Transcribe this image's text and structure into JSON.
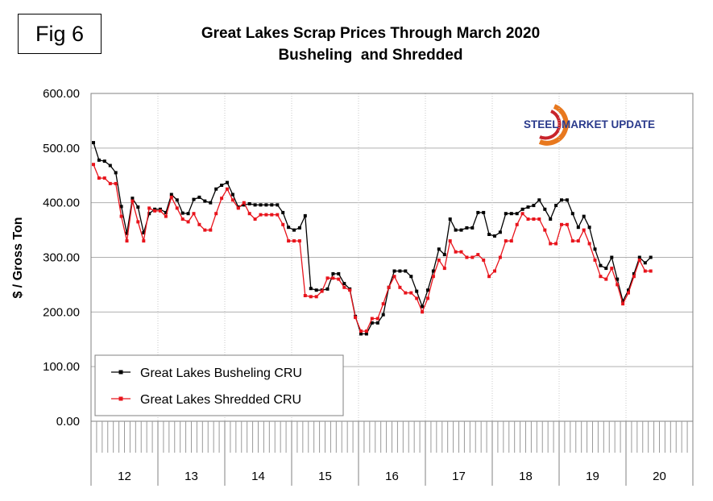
{
  "figure_label": "Fig 6",
  "logo": {
    "text": "STEEL MARKET UPDATE",
    "colors": [
      "#e8781e",
      "#c8242b",
      "#2a3a8c"
    ]
  },
  "chart_data": {
    "type": "line",
    "title": "Great Lakes Scrap Prices Through March 2020",
    "subtitle": "Busheling  and Shredded",
    "xlabel": "",
    "ylabel": "$ / Gross Ton",
    "ylim": [
      0,
      600
    ],
    "yticks": [
      "0.00",
      "100.00",
      "200.00",
      "300.00",
      "400.00",
      "500.00",
      "600.00"
    ],
    "year_labels": [
      "12",
      "13",
      "14",
      "15",
      "16",
      "17",
      "18",
      "19",
      "20"
    ],
    "months_per_year": 12,
    "grid": "horizontal and vertical (year boundaries)",
    "legend_position": "bottom-left",
    "series": [
      {
        "name": "Great Lakes Busheling CRU",
        "color": "#000000",
        "values": [
          510,
          478,
          476,
          468,
          455,
          393,
          344,
          408,
          392,
          345,
          380,
          388,
          388,
          382,
          415,
          405,
          381,
          380,
          406,
          410,
          403,
          400,
          425,
          432,
          437,
          415,
          392,
          396,
          398,
          396,
          396,
          396,
          396,
          396,
          382,
          355,
          350,
          354,
          376,
          243,
          240,
          240,
          242,
          270,
          270,
          252,
          242,
          192,
          160,
          160,
          180,
          180,
          195,
          245,
          275,
          275,
          275,
          265,
          238,
          210,
          240,
          275,
          315,
          305,
          370,
          350,
          350,
          354,
          354,
          382,
          382,
          342,
          339,
          346,
          380,
          380,
          380,
          388,
          392,
          395,
          405,
          388,
          370,
          395,
          405,
          405,
          380,
          355,
          375,
          355,
          315,
          285,
          280,
          300,
          260,
          220,
          240,
          270,
          300,
          290,
          300
        ]
      },
      {
        "name": "Great Lakes Shredded CRU",
        "color": "#e8141c",
        "values": [
          470,
          445,
          445,
          435,
          435,
          375,
          330,
          403,
          365,
          330,
          390,
          385,
          385,
          375,
          410,
          390,
          370,
          365,
          380,
          360,
          350,
          350,
          380,
          408,
          425,
          405,
          390,
          400,
          380,
          370,
          378,
          378,
          378,
          378,
          360,
          330,
          330,
          330,
          230,
          228,
          228,
          238,
          262,
          262,
          260,
          245,
          240,
          190,
          165,
          165,
          188,
          188,
          215,
          245,
          265,
          245,
          235,
          235,
          225,
          200,
          225,
          265,
          295,
          280,
          330,
          310,
          310,
          300,
          300,
          305,
          295,
          265,
          275,
          300,
          330,
          330,
          360,
          380,
          370,
          370,
          370,
          350,
          325,
          325,
          360,
          360,
          330,
          330,
          350,
          325,
          295,
          265,
          260,
          280,
          250,
          215,
          235,
          265,
          295,
          275,
          275
        ]
      }
    ]
  }
}
